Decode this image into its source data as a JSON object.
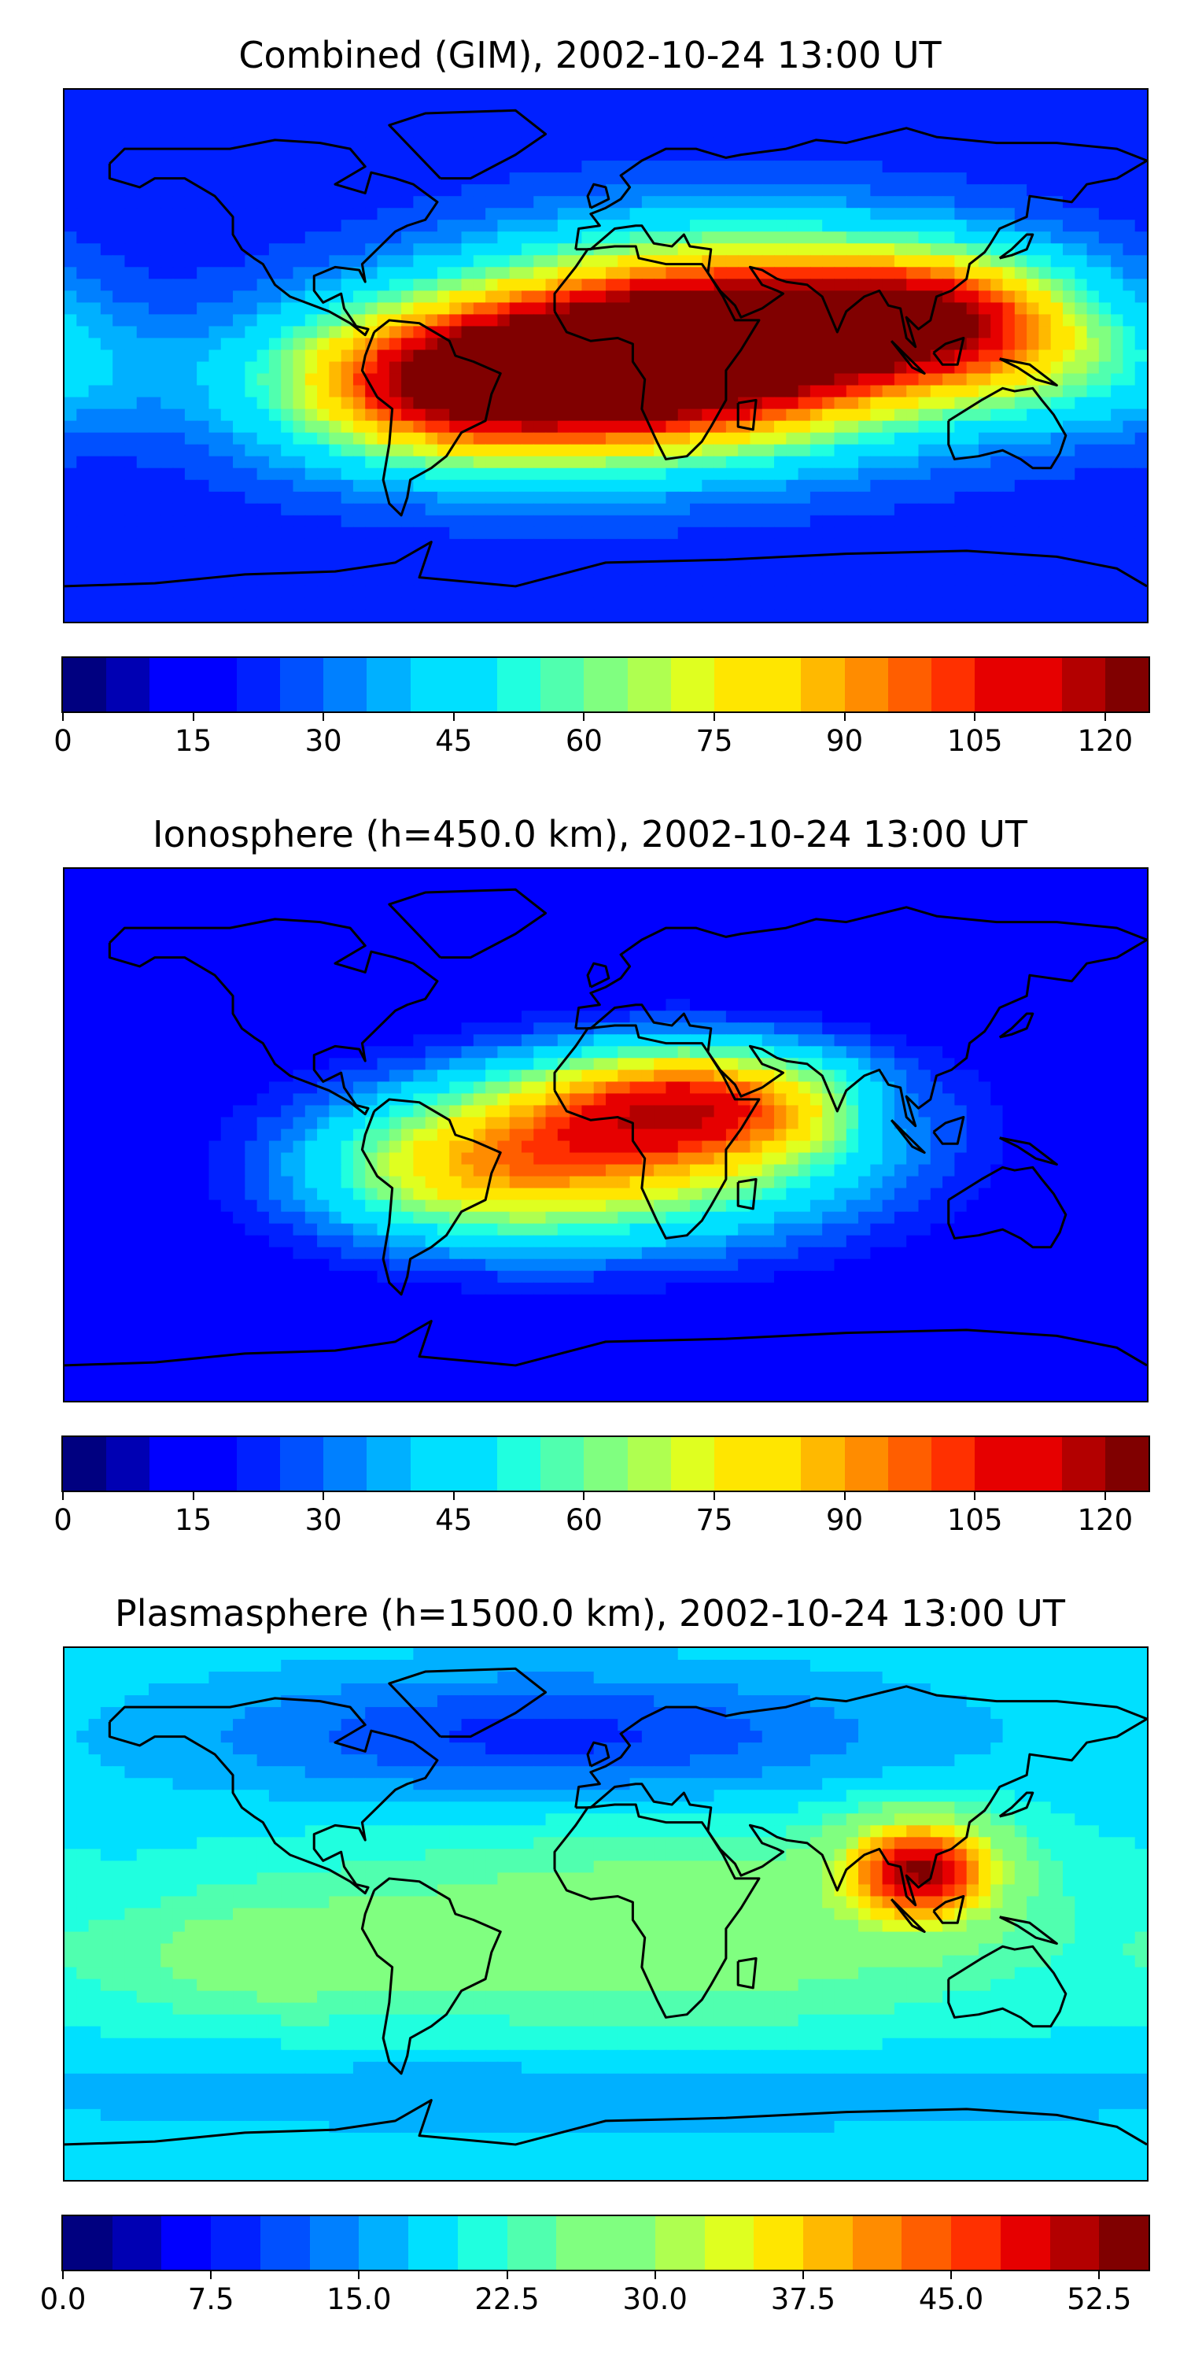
{
  "panels": [
    {
      "title": "Combined (GIM), 2002-10-24 13:00 UT",
      "colorbar": {
        "min": 0,
        "max": 125,
        "levels": 25,
        "tick_values": [
          0,
          15,
          30,
          45,
          60,
          75,
          90,
          105,
          120
        ],
        "tick_labels": [
          "0",
          "15",
          "30",
          "45",
          "60",
          "75",
          "90",
          "105",
          "120"
        ]
      },
      "field": {
        "background": 22,
        "blobs": [
          {
            "lon": 40,
            "lat": 10,
            "value": 85,
            "spread_lon": 55,
            "spread_lat": 22
          },
          {
            "lon": 0,
            "lat": -8,
            "value": 75,
            "spread_lon": 60,
            "spread_lat": 20
          },
          {
            "lon": -55,
            "lat": -10,
            "value": 55,
            "spread_lon": 40,
            "spread_lat": 18
          },
          {
            "lon": 110,
            "lat": 15,
            "value": 60,
            "spread_lon": 35,
            "spread_lat": 15
          },
          {
            "lon": 150,
            "lat": -5,
            "value": 25,
            "spread_lon": 40,
            "spread_lat": 15
          }
        ]
      }
    },
    {
      "title": "Ionosphere  (h=450.0 km), 2002-10-24 13:00 UT",
      "colorbar": {
        "min": 0,
        "max": 125,
        "levels": 25,
        "tick_values": [
          0,
          15,
          30,
          45,
          60,
          75,
          90,
          105,
          120
        ],
        "tick_labels": [
          "0",
          "15",
          "30",
          "45",
          "60",
          "75",
          "90",
          "105",
          "120"
        ]
      },
      "field": {
        "background": 12,
        "blobs": [
          {
            "lon": 30,
            "lat": 12,
            "value": 65,
            "spread_lon": 40,
            "spread_lat": 14
          },
          {
            "lon": 10,
            "lat": -8,
            "value": 55,
            "spread_lon": 60,
            "spread_lat": 22
          },
          {
            "lon": -50,
            "lat": -12,
            "value": 40,
            "spread_lon": 40,
            "spread_lat": 18
          },
          {
            "lon": 95,
            "lat": 8,
            "value": -8,
            "spread_lon": 10,
            "spread_lat": 8
          }
        ]
      }
    },
    {
      "title": "Plasmasphere (h=1500.0 km), 2002-10-24 13:00 UT",
      "colorbar": {
        "min": 0,
        "max": 55,
        "levels": 22,
        "tick_values": [
          0,
          7.5,
          15,
          22.5,
          30,
          37.5,
          45,
          52.5
        ],
        "tick_labels": [
          "0.0",
          "7.5",
          "15.0",
          "22.5",
          "30.0",
          "37.5",
          "45.0",
          "52.5"
        ]
      },
      "field": {
        "background": 19,
        "blobs": [
          {
            "lon": 105,
            "lat": 15,
            "value": 30,
            "spread_lon": 18,
            "spread_lat": 12
          },
          {
            "lon": 20,
            "lat": -5,
            "value": 9,
            "spread_lon": 90,
            "spread_lat": 25
          },
          {
            "lon": -120,
            "lat": -15,
            "value": 6,
            "spread_lon": 40,
            "spread_lat": 15
          },
          {
            "lon": -20,
            "lat": 60,
            "value": -10,
            "spread_lon": 80,
            "spread_lat": 15
          },
          {
            "lon": 0,
            "lat": -60,
            "value": -4,
            "spread_lon": 150,
            "spread_lat": 10
          }
        ]
      }
    }
  ],
  "colormap": [
    "#000080",
    "#0000b3",
    "#0000ff",
    "#0020ff",
    "#0050ff",
    "#0080ff",
    "#00b0ff",
    "#00e0ff",
    "#20ffdf",
    "#50ffaf",
    "#80ff80",
    "#afff50",
    "#dfff20",
    "#ffe600",
    "#ffb900",
    "#ff8c00",
    "#ff5e00",
    "#ff3000",
    "#e60000",
    "#b30000",
    "#800000"
  ]
}
